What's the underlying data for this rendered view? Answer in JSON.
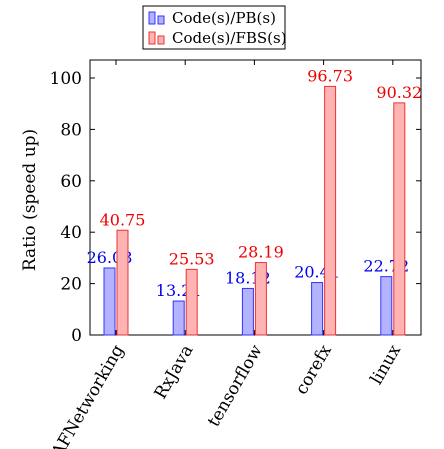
{
  "chart_data": {
    "type": "bar",
    "title": "",
    "xlabel": "",
    "ylabel": "Ratio (speed up)",
    "categories": [
      "AFNetworking",
      "RxJava",
      "tensorflow",
      "corefx",
      "linux"
    ],
    "ylim": [
      0,
      107
    ],
    "yticks": [
      0,
      20,
      40,
      60,
      80,
      100
    ],
    "grid": false,
    "legend_position": "top-center",
    "series": [
      {
        "name": "Code(s)/PB(s)",
        "values": [
          26.08,
          13.21,
          18.12,
          20.41,
          22.72
        ],
        "labels": [
          "26.08",
          "13.21",
          "18.12",
          "20.41",
          "22.72"
        ],
        "fill": "#b3b3ff",
        "stroke": "#3333ff",
        "label_color": "#0000ee"
      },
      {
        "name": "Code(s)/FBS(s)",
        "values": [
          40.75,
          25.53,
          28.19,
          96.73,
          90.32
        ],
        "labels": [
          "40.75",
          "25.53",
          "28.19",
          "96.73",
          "90.32"
        ],
        "fill": "#ffb3b3",
        "stroke": "#ee3333",
        "label_color": "#ee0000"
      }
    ]
  }
}
